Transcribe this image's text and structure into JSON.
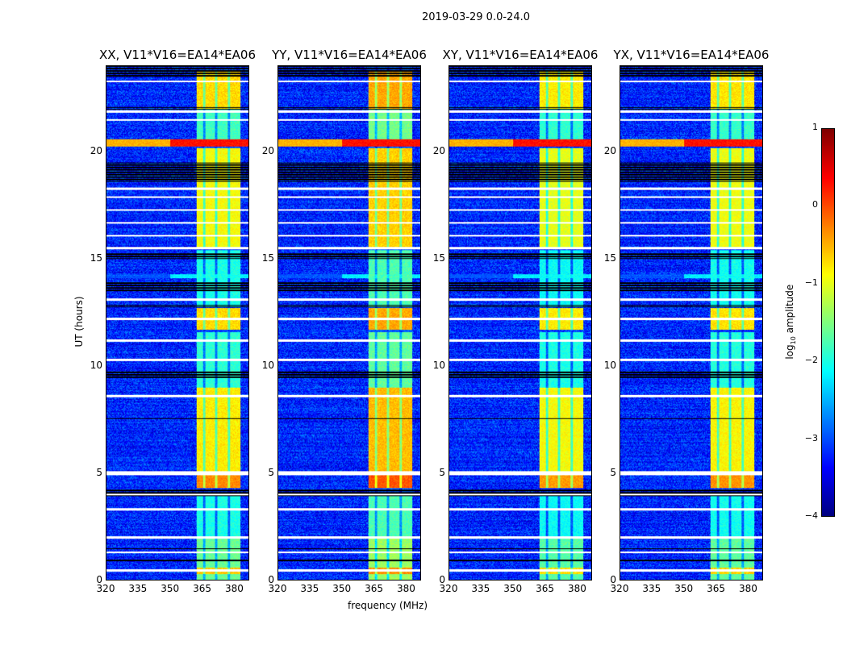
{
  "chart_data": {
    "type": "heatmap",
    "suptitle": "2019-03-29 0.0-24.0",
    "xlabel": "frequency (MHz)",
    "ylabel": "UT (hours)",
    "xlim": [
      320,
      387
    ],
    "ylim": [
      0,
      24
    ],
    "xticks": [
      "320",
      "335",
      "350",
      "365",
      "380"
    ],
    "xtick_values": [
      320,
      335,
      350,
      365,
      380
    ],
    "yticks": [
      "0",
      "5",
      "10",
      "15",
      "20"
    ],
    "ytick_values": [
      0,
      5,
      10,
      15,
      20
    ],
    "panels": [
      {
        "title": "XX, V11*V16=EA14*EA06",
        "band_gain": 0.0
      },
      {
        "title": "YY, V11*V16=EA14*EA06",
        "band_gain": 0.25
      },
      {
        "title": "XY, V11*V16=EA14*EA06",
        "band_gain": -0.1
      },
      {
        "title": "YX, V11*V16=EA14*EA06",
        "band_gain": -0.05
      }
    ],
    "colorbar": {
      "label": "log10 amplitude",
      "label_main": "log",
      "label_sub": "10",
      "label_rest": " amplitude",
      "colormap": "jet",
      "clim": [
        -4,
        1
      ],
      "ticks": [
        "1",
        "0",
        "−1",
        "−2",
        "−3",
        "−4"
      ],
      "tick_values": [
        1,
        0,
        -1,
        -2,
        -3,
        -4
      ]
    },
    "background_level": -3.2,
    "rfi_band_mhz": [
      362.5,
      383
    ],
    "rfi_band_gaps_mhz": [
      365.8,
      371.5,
      377.5
    ],
    "band_levels": [
      {
        "t": [
          0,
          2
        ],
        "level": -1.6
      },
      {
        "t": [
          0.3,
          0.6
        ],
        "level": -0.6
      },
      {
        "t": [
          2,
          4
        ],
        "level": -2.0
      },
      {
        "t": [
          4.3,
          4.9
        ],
        "level": -0.3
      },
      {
        "t": [
          5,
          9
        ],
        "level": -0.8
      },
      {
        "t": [
          9,
          11.6
        ],
        "level": -1.9
      },
      {
        "t": [
          11.7,
          12.7
        ],
        "level": -0.7
      },
      {
        "t": [
          12.8,
          15.4
        ],
        "level": -2.0
      },
      {
        "t": [
          15.5,
          20.2
        ],
        "level": -0.9
      },
      {
        "t": [
          20.6,
          22
        ],
        "level": -1.8
      },
      {
        "t": [
          22,
          23.8
        ],
        "level": -0.7
      }
    ],
    "broadband_rows": [
      {
        "t": [
          20.25,
          20.6
        ],
        "level": 0.3
      },
      {
        "t": [
          14.1,
          14.3
        ],
        "level": -2.2
      }
    ],
    "flagged_white_hours": [
      0.45,
      1.3,
      2.0,
      3.3,
      4.0,
      4.95,
      5.05,
      8.6,
      10.3,
      11.2,
      12.2,
      13.1,
      15.5,
      16.1,
      16.7,
      17.3,
      17.9,
      18.3,
      21.5,
      21.9,
      23.3
    ],
    "flagged_black_hours": [
      [
        0.85,
        1.0
      ],
      [
        1.45,
        1.5
      ],
      [
        3.9,
        4.25
      ],
      [
        7.5,
        7.55
      ],
      [
        9.4,
        9.8
      ],
      [
        12.75,
        12.85
      ],
      [
        13.5,
        13.9
      ],
      [
        15.0,
        15.3
      ],
      [
        18.6,
        19.5
      ],
      [
        23.5,
        24.0
      ],
      [
        22.0,
        22.1
      ]
    ]
  }
}
